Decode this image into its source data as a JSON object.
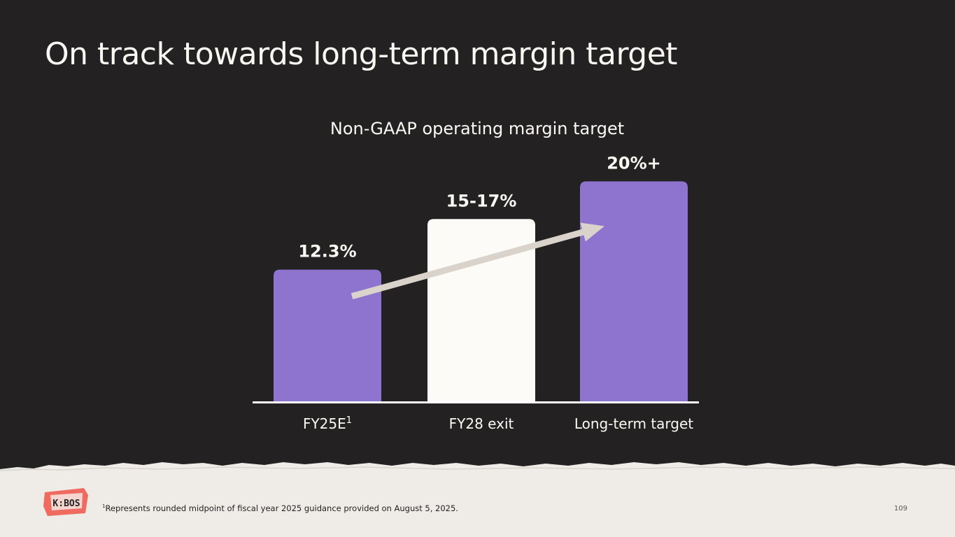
{
  "slide": {
    "title": "On track towards long-term margin target",
    "page_number": "109",
    "logo_text": "K:BOS",
    "footnote_marker": "1",
    "footnote": "Represents rounded midpoint of fiscal year 2025 guidance provided on August 5, 2025."
  },
  "colors": {
    "background": "#232122",
    "purple": "#8e74cf",
    "cream": "#fdfbf8",
    "arrow": "#d9d3cc",
    "footer": "#efece8",
    "logo_red": "#ef6a5f"
  },
  "chart_data": {
    "type": "bar",
    "title": "Non-GAAP operating margin target",
    "xlabel": "",
    "ylabel": "",
    "ylim": [
      0,
      21.5
    ],
    "categories": [
      "FY25E",
      "FY28 exit",
      "Long-term target"
    ],
    "category_superscripts": [
      "1",
      "",
      ""
    ],
    "values": [
      12.3,
      17,
      20.5
    ],
    "labels": [
      "12.3%",
      "15-17%",
      "20%+"
    ],
    "bar_colors": [
      "purple",
      "cream",
      "purple"
    ],
    "annotation": "upward trend arrow from FY25E to Long-term target"
  }
}
